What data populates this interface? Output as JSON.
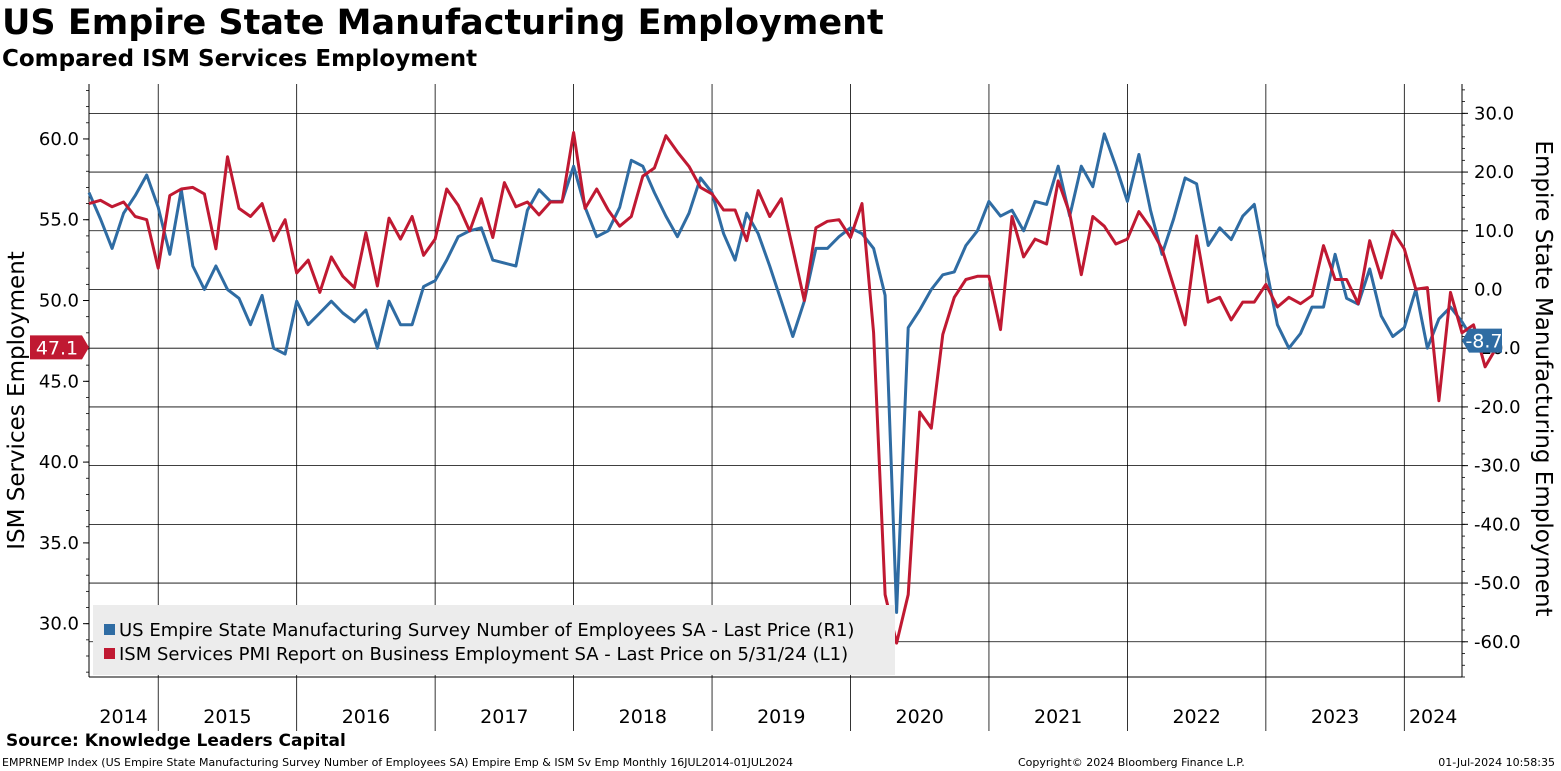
{
  "header": {
    "title": "US Empire State Manufacturing Employment",
    "subtitle": "Compared ISM Services Employment"
  },
  "footer": {
    "source": "Source: Knowledge Leaders Capital",
    "index_info": "EMPRNEMP Index (US Empire State Manufacturing Survey Number of Employees SA) Empire Emp & ISM Sv Emp  Monthly 16JUL2014-01JUL2024",
    "copyright": "Copyright© 2024 Bloomberg Finance L.P.",
    "timestamp": "01-Jul-2024 10:58:35"
  },
  "chart_data": {
    "type": "line",
    "x_start": "2014-07",
    "x_end": "2024-06",
    "x_tick_labels": [
      "2014",
      "2015",
      "2016",
      "2017",
      "2018",
      "2019",
      "2020",
      "2021",
      "2022",
      "2023",
      "2024"
    ],
    "ylabel_left": "ISM Services Employment",
    "ylabel_right": "Empire State Manufacturing Employment",
    "ylim_left": [
      26.7,
      63.4
    ],
    "yticks_left": [
      "30.0",
      "35.0",
      "40.0",
      "45.0",
      "50.0",
      "55.0",
      "60.0"
    ],
    "ylim_right": [
      -66.0,
      35.0
    ],
    "yticks_right": [
      "-60.0",
      "-50.0",
      "-40.0",
      "-30.0",
      "-20.0",
      "-10.0",
      "0.0",
      "10.0",
      "20.0",
      "30.0"
    ],
    "grid": true,
    "legend_position": "bottom-left",
    "last_value_left": "47.1",
    "last_value_right": "-8.7",
    "colors": {
      "empire": "#2f6ca3",
      "ism": "#c01932",
      "grid": "#000000"
    },
    "series": [
      {
        "name": "US Empire State Manufacturing Survey Number of Employees SA - Last Price (R1)",
        "axis": "right",
        "color": "#2f6ca3",
        "start": "2014-07",
        "values": [
          16.5,
          12.0,
          7.0,
          13.0,
          16.0,
          19.5,
          14.0,
          6.0,
          17.0,
          4.0,
          0.0,
          4.0,
          0.0,
          -1.5,
          -6.0,
          -1.0,
          -10.0,
          -11.0,
          -2.0,
          -6.0,
          -4.0,
          -2.0,
          -4.0,
          -5.5,
          -3.5,
          -10.0,
          -2.0,
          -6.0,
          -6.0,
          0.5,
          1.5,
          5.0,
          9.0,
          10.0,
          10.5,
          5.0,
          4.5,
          4.0,
          13.5,
          17.0,
          15.0,
          15.0,
          21.0,
          14.0,
          9.0,
          10.0,
          14.0,
          22.0,
          21.0,
          16.5,
          12.5,
          9.0,
          13.0,
          19.0,
          16.5,
          9.5,
          5.0,
          13.0,
          9.5,
          4.0,
          -2.0,
          -8.0,
          -2.0,
          7.0,
          7.0,
          9.0,
          10.5,
          9.5,
          7.0,
          -1.0,
          -55.0,
          -6.5,
          -3.5,
          0.0,
          2.5,
          3.0,
          7.5,
          10.0,
          15.0,
          12.5,
          13.5,
          10.0,
          15.0,
          14.5,
          21.0,
          12.5,
          21.0,
          17.5,
          26.5,
          21.0,
          15.0,
          23.0,
          13.5,
          6.0,
          12.0,
          19.0,
          18.0,
          7.5,
          10.5,
          8.5,
          12.5,
          14.5,
          4.0,
          -6.0,
          -10.0,
          -7.5,
          -3.0,
          -3.0,
          6.0,
          -1.5,
          -2.5,
          3.5,
          -4.5,
          -8.0,
          -6.5,
          0.0,
          -10.0,
          -5.0,
          -3.0,
          -5.5,
          -8.7
        ]
      },
      {
        "name": "ISM Services PMI Report on Business Employment SA - Last Price on 5/31/24 (L1)",
        "axis": "left",
        "color": "#c01932",
        "start": "2014-07",
        "values": [
          56.0,
          56.2,
          55.8,
          56.1,
          55.2,
          55.0,
          52.0,
          56.5,
          56.9,
          57.0,
          56.6,
          53.2,
          58.9,
          55.7,
          55.2,
          56.0,
          53.7,
          55.0,
          51.7,
          52.5,
          50.5,
          52.7,
          51.5,
          50.8,
          54.2,
          50.9,
          55.1,
          53.8,
          55.2,
          52.8,
          53.8,
          56.9,
          55.9,
          54.3,
          56.3,
          53.9,
          57.3,
          55.8,
          56.1,
          55.3,
          56.1,
          56.1,
          60.4,
          55.7,
          56.9,
          55.6,
          54.6,
          55.2,
          57.7,
          58.2,
          60.2,
          59.2,
          58.3,
          57.0,
          56.6,
          55.6,
          55.6,
          53.7,
          56.8,
          55.2,
          56.3,
          53.2,
          50.0,
          54.5,
          54.9,
          55.0,
          53.9,
          56.0,
          48.0,
          31.8,
          28.8,
          31.8,
          43.1,
          42.1,
          47.9,
          50.2,
          51.3,
          51.5,
          51.5,
          48.2,
          55.2,
          52.7,
          53.8,
          53.5,
          57.4,
          55.4,
          51.6,
          55.2,
          54.6,
          53.5,
          53.8,
          55.5,
          54.5,
          53.2,
          50.9,
          48.5,
          54.0,
          49.9,
          50.2,
          48.8,
          49.9,
          49.9,
          51.0,
          49.6,
          50.2,
          49.8,
          50.3,
          53.4,
          51.3,
          51.3,
          49.8,
          53.7,
          51.4,
          54.3,
          53.2,
          50.7,
          50.8,
          43.8,
          50.5,
          48.0,
          48.5,
          45.9,
          47.1
        ]
      }
    ]
  }
}
